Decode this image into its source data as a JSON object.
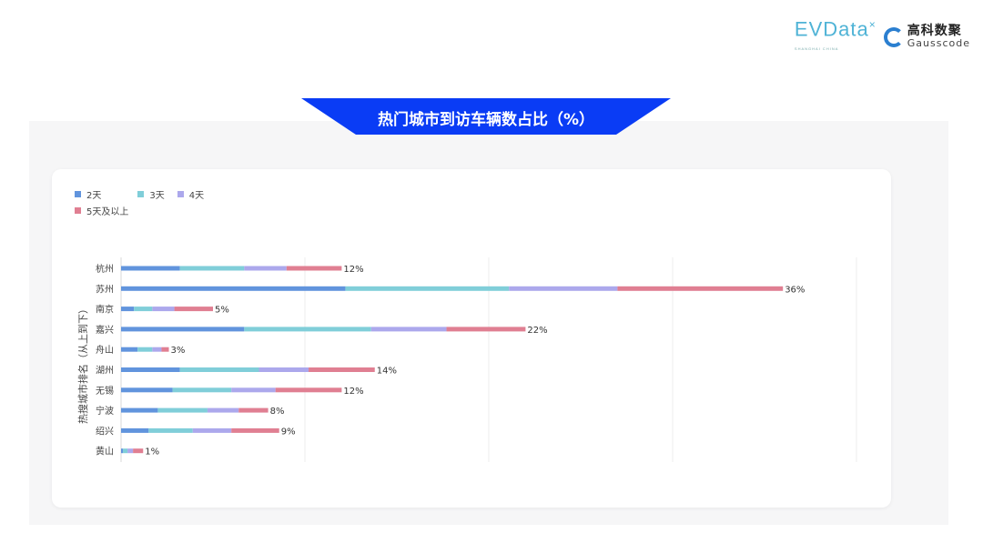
{
  "logos": {
    "evdata": "EVData",
    "evdata_sub": "SHANGHAI CHINA",
    "gauss_cn": "高科数聚",
    "gauss_en": "Gausscode"
  },
  "banner": {
    "title": "热门城市到访车辆数占比（%）",
    "color": "#0a3cf5"
  },
  "chart_data": {
    "type": "bar",
    "orientation": "horizontal",
    "stacked": true,
    "title": "热门城市到访车辆数占比（%）",
    "ylabel": "热搜城市排名（从上到下）",
    "xlabel": "",
    "xlim": [
      0,
      40
    ],
    "grid": true,
    "legend_position": "top-left",
    "categories": [
      "杭州",
      "苏州",
      "南京",
      "嘉兴",
      "舟山",
      "湖州",
      "无锡",
      "宁波",
      "绍兴",
      "黄山"
    ],
    "series": [
      {
        "name": "2天",
        "color": "#6194dd",
        "values": [
          3.2,
          12.2,
          0.7,
          6.7,
          0.9,
          3.2,
          2.8,
          2.0,
          1.5,
          0.1
        ]
      },
      {
        "name": "3天",
        "color": "#80ced9",
        "values": [
          3.5,
          8.9,
          1.0,
          6.9,
          0.8,
          4.3,
          3.2,
          2.7,
          2.4,
          0.25
        ]
      },
      {
        "name": "4天",
        "color": "#aca8ec",
        "values": [
          2.3,
          5.9,
          1.2,
          4.1,
          0.5,
          2.7,
          2.4,
          1.7,
          2.1,
          0.3
        ]
      },
      {
        "name": "5天及以上",
        "color": "#e07f92",
        "values": [
          3.0,
          9.0,
          2.1,
          4.3,
          0.4,
          3.6,
          3.6,
          1.6,
          2.6,
          0.55
        ]
      }
    ],
    "total_labels": [
      "12%",
      "36%",
      "5%",
      "22%",
      "3%",
      "14%",
      "12%",
      "8%",
      "9%",
      "1%"
    ]
  }
}
